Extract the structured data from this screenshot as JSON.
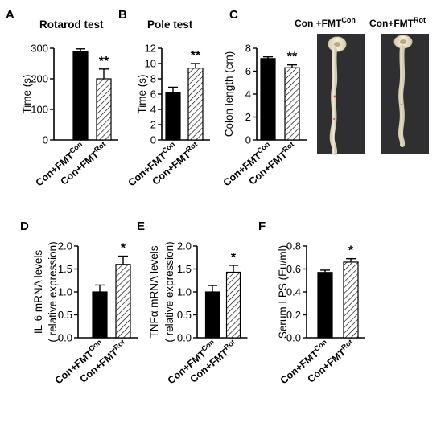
{
  "chart_data": [
    {
      "panel": "A",
      "type": "bar",
      "title": "Rotarod test",
      "ylabel": "Time (s)",
      "ylim": [
        0,
        300
      ],
      "yticks": [
        "0",
        "100",
        "200",
        "300"
      ],
      "categories": [
        "Con+FMTCon",
        "Con+FMTRot"
      ],
      "values": [
        290,
        200
      ],
      "errors": [
        8,
        32
      ],
      "significance": [
        "",
        "**"
      ]
    },
    {
      "panel": "B",
      "type": "bar",
      "title": "Pole test",
      "ylabel": "Time (s)",
      "ylim": [
        0,
        12
      ],
      "yticks": [
        "0",
        "2",
        "4",
        "6",
        "8",
        "10",
        "12"
      ],
      "categories": [
        "Con+FMTCon",
        "Con+FMTRot"
      ],
      "values": [
        6.2,
        9.4
      ],
      "errors": [
        0.7,
        0.6
      ],
      "significance": [
        "",
        "**"
      ]
    },
    {
      "panel": "C",
      "type": "bar",
      "title": "",
      "ylabel": "Colon length  (cm)",
      "ylim": [
        0,
        8
      ],
      "yticks": [
        "0",
        "2",
        "4",
        "6",
        "8"
      ],
      "categories": [
        "Con+FMTCon",
        "Con+FMTRot"
      ],
      "values": [
        7.1,
        6.3
      ],
      "errors": [
        0.15,
        0.25
      ],
      "significance": [
        "",
        "**"
      ]
    },
    {
      "panel": "D",
      "type": "bar",
      "title": "",
      "ylabel": "IL-6 mRNA levels",
      "ylabel2": "( relative expression)",
      "ylim": [
        0,
        2
      ],
      "yticks": [
        "0.0",
        "0.5",
        "1.0",
        "1.5",
        "2.0"
      ],
      "categories": [
        "Con+FMTCon",
        "Con+FMTRot"
      ],
      "values": [
        1.0,
        1.6
      ],
      "errors": [
        0.15,
        0.18
      ],
      "significance": [
        "",
        "*"
      ]
    },
    {
      "panel": "E",
      "type": "bar",
      "title": "",
      "ylabel": "TNFα  mRNA levels",
      "ylabel2": "( relative expression)",
      "ylim": [
        0,
        2
      ],
      "yticks": [
        "0.0",
        "0.5",
        "1.0",
        "1.5",
        "2.0"
      ],
      "categories": [
        "Con+FMTCon",
        "Con+FMTRot"
      ],
      "values": [
        1.0,
        1.43
      ],
      "errors": [
        0.14,
        0.15
      ],
      "significance": [
        "",
        "*"
      ]
    },
    {
      "panel": "F",
      "type": "bar",
      "title": "",
      "ylabel": "Serum LPS (Eu/ml)",
      "ylim": [
        0,
        0.8
      ],
      "yticks": [
        "0.0",
        "0.2",
        "0.4",
        "0.6",
        "0.8"
      ],
      "categories": [
        "Con+FMTCon",
        "Con+FMTRot"
      ],
      "values": [
        0.57,
        0.66
      ],
      "errors": [
        0.02,
        0.03
      ],
      "significance": [
        "",
        "*"
      ]
    }
  ],
  "labels": {
    "cat_base": "Con+FMT",
    "sup_con": "Con",
    "sup_rot": "Rot",
    "photo_left_base": "Con +FMT",
    "photo_left_sup": "Con",
    "photo_right_base": "Con+FMT",
    "photo_right_sup": "Rot"
  },
  "colors": {
    "bar_control": "#000000",
    "bar_treatment_hatch": "#000000",
    "photo_background": "#2a2a2c",
    "colon_tissue": "#efe6cf"
  }
}
